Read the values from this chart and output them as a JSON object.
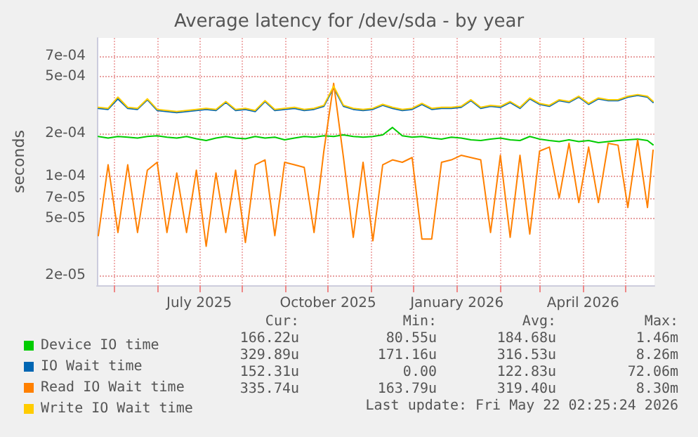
{
  "chart_data": {
    "type": "line",
    "title": "Average latency for /dev/sda - by year",
    "ylabel": "seconds",
    "log": "y",
    "grid": true,
    "legend": "bottom left",
    "marker": "none",
    "line_style": "solid",
    "ylim": [
      1.7e-05,
      0.00094
    ],
    "yticks": [
      {
        "value": 2e-05,
        "label": "2e-05"
      },
      {
        "value": 5e-05,
        "label": "5e-05"
      },
      {
        "value": 7e-05,
        "label": "7e-05"
      },
      {
        "value": 0.0001,
        "label": "1e-04"
      },
      {
        "value": 0.0002,
        "label": "2e-04"
      },
      {
        "value": 0.0005,
        "label": "5e-04"
      },
      {
        "value": 0.0007,
        "label": "7e-04"
      }
    ],
    "xlim": [
      "2025-04-19",
      "2026-05-22"
    ],
    "xticks": [
      {
        "value": "2025-05-01",
        "label": null
      },
      {
        "value": "2025-06-01",
        "label": null
      },
      {
        "value": "2025-07-01",
        "label": "July 2025"
      },
      {
        "value": "2025-08-01",
        "label": null
      },
      {
        "value": "2025-09-01",
        "label": null
      },
      {
        "value": "2025-10-01",
        "label": "October 2025"
      },
      {
        "value": "2025-11-01",
        "label": null
      },
      {
        "value": "2025-12-01",
        "label": null
      },
      {
        "value": "2026-01-01",
        "label": "January 2026"
      },
      {
        "value": "2026-02-01",
        "label": null
      },
      {
        "value": "2026-03-01",
        "label": null
      },
      {
        "value": "2026-04-01",
        "label": "April 2026"
      },
      {
        "value": "2026-05-01",
        "label": null
      }
    ],
    "x": [
      "2025-04-20",
      "2025-04-27",
      "2025-05-04",
      "2025-05-11",
      "2025-05-18",
      "2025-05-25",
      "2025-06-01",
      "2025-06-08",
      "2025-06-15",
      "2025-06-22",
      "2025-06-29",
      "2025-07-06",
      "2025-07-13",
      "2025-07-20",
      "2025-07-27",
      "2025-08-03",
      "2025-08-10",
      "2025-08-17",
      "2025-08-24",
      "2025-08-31",
      "2025-09-07",
      "2025-09-14",
      "2025-09-21",
      "2025-09-28",
      "2025-10-05",
      "2025-10-12",
      "2025-10-19",
      "2025-10-26",
      "2025-11-02",
      "2025-11-09",
      "2025-11-16",
      "2025-11-23",
      "2025-11-30",
      "2025-12-07",
      "2025-12-14",
      "2025-12-21",
      "2025-12-28",
      "2026-01-04",
      "2026-01-11",
      "2026-01-18",
      "2026-01-25",
      "2026-02-01",
      "2026-02-08",
      "2026-02-15",
      "2026-02-22",
      "2026-03-01",
      "2026-03-08",
      "2026-03-15",
      "2026-03-22",
      "2026-03-29",
      "2026-04-05",
      "2026-04-12",
      "2026-04-19",
      "2026-04-26",
      "2026-05-03",
      "2026-05-10",
      "2026-05-17",
      "2026-05-21"
    ],
    "series": [
      {
        "name": "Device IO time",
        "color": "#00cc00",
        "values": [
          0.00019,
          0.000185,
          0.00019,
          0.000188,
          0.000185,
          0.00019,
          0.000192,
          0.000188,
          0.000185,
          0.00019,
          0.000183,
          0.000178,
          0.000185,
          0.00019,
          0.000185,
          0.000183,
          0.00019,
          0.000185,
          0.000188,
          0.00018,
          0.000185,
          0.00019,
          0.000188,
          0.000192,
          0.00019,
          0.000195,
          0.00019,
          0.000188,
          0.00019,
          0.000195,
          0.00022,
          0.000192,
          0.000188,
          0.00019,
          0.000185,
          0.000182,
          0.000188,
          0.000185,
          0.00018,
          0.000178,
          0.000182,
          0.000185,
          0.00018,
          0.000178,
          0.00019,
          0.000182,
          0.000178,
          0.000175,
          0.00018,
          0.000175,
          0.000178,
          0.000172,
          0.000175,
          0.000178,
          0.00018,
          0.000182,
          0.000178,
          0.000166
        ]
      },
      {
        "name": "IO Wait time",
        "color": "#0066b3",
        "values": [
          0.0003,
          0.000295,
          0.00035,
          0.0003,
          0.000295,
          0.000345,
          0.00029,
          0.000285,
          0.00028,
          0.000285,
          0.00029,
          0.000295,
          0.00029,
          0.00033,
          0.00029,
          0.000295,
          0.000285,
          0.000335,
          0.00029,
          0.000295,
          0.0003,
          0.00029,
          0.000295,
          0.00031,
          0.00042,
          0.00031,
          0.000295,
          0.00029,
          0.000295,
          0.000315,
          0.0003,
          0.00029,
          0.000295,
          0.00032,
          0.000295,
          0.0003,
          0.0003,
          0.000305,
          0.00034,
          0.0003,
          0.00031,
          0.000305,
          0.00033,
          0.0003,
          0.00035,
          0.00032,
          0.00031,
          0.00034,
          0.00033,
          0.00036,
          0.00032,
          0.00035,
          0.00034,
          0.00034,
          0.00036,
          0.00037,
          0.00036,
          0.00033
        ]
      },
      {
        "name": "Read IO Wait time",
        "color": "#ff8000",
        "values": [
          3.8e-05,
          0.00012,
          4e-05,
          0.00012,
          4e-05,
          0.00011,
          0.000125,
          4e-05,
          0.000105,
          4e-05,
          0.00011,
          3.2e-05,
          0.000105,
          4e-05,
          0.00011,
          3.4e-05,
          0.00012,
          0.00013,
          3.8e-05,
          0.000125,
          0.00012,
          0.000115,
          4e-05,
          0.00015,
          0.00045,
          0.000135,
          3.7e-05,
          0.000125,
          3.5e-05,
          0.00012,
          0.00013,
          0.000125,
          0.000135,
          3.6e-05,
          3.6e-05,
          0.000125,
          0.00013,
          0.00014,
          0.000135,
          0.00013,
          4e-05,
          0.00014,
          3.7e-05,
          0.00014,
          3.9e-05,
          0.00015,
          0.00016,
          7e-05,
          0.00017,
          6.5e-05,
          0.00016,
          6.5e-05,
          0.00017,
          0.000165,
          6e-05,
          0.00018,
          6e-05,
          0.000152
        ]
      },
      {
        "name": "Write IO Wait time",
        "color": "#ffcc00",
        "values": [
          0.000305,
          0.0003,
          0.00036,
          0.000305,
          0.0003,
          0.00035,
          0.000295,
          0.00029,
          0.000285,
          0.00029,
          0.000295,
          0.0003,
          0.000295,
          0.000335,
          0.000295,
          0.0003,
          0.00029,
          0.00034,
          0.000295,
          0.0003,
          0.000305,
          0.000295,
          0.0003,
          0.000315,
          0.00043,
          0.000315,
          0.0003,
          0.000295,
          0.0003,
          0.00032,
          0.000305,
          0.000295,
          0.0003,
          0.000325,
          0.0003,
          0.000305,
          0.000305,
          0.00031,
          0.000345,
          0.000305,
          0.000315,
          0.00031,
          0.000335,
          0.000305,
          0.000355,
          0.000325,
          0.000315,
          0.000345,
          0.000335,
          0.000365,
          0.000325,
          0.000355,
          0.000345,
          0.000345,
          0.000365,
          0.000375,
          0.000365,
          0.000336
        ]
      }
    ],
    "annotations": [
      "Cur:",
      "Min:",
      "Avg:",
      "Max:",
      "166.22u",
      "80.55u",
      "184.68u",
      "1.46m",
      "329.89u",
      "171.16u",
      "316.53u",
      "8.26m",
      "152.31u",
      "0.00",
      "122.83u",
      "72.06m",
      "335.74u",
      "163.79u",
      "319.40u",
      "8.30m",
      "Last update: Fri May 22 02:25:24 2026"
    ]
  }
}
